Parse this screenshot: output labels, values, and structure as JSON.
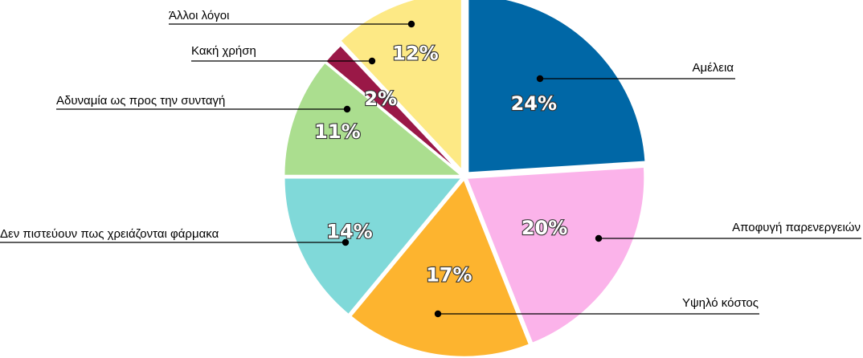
{
  "chart_data": {
    "type": "pie",
    "slices": [
      {
        "label": "Αμέλεια",
        "value": 24,
        "value_label": "24%",
        "color": "#0067a6"
      },
      {
        "label": "Αποφυγή παρενεργειών",
        "value": 20,
        "value_label": "20%",
        "color": "#fbb3ea"
      },
      {
        "label": "Υψηλό κόστος",
        "value": 17,
        "value_label": "17%",
        "color": "#fdb42f"
      },
      {
        "label": "Δεν πιστεύουν πως χρειάζονται φάρμακα",
        "value": 14,
        "value_label": "14%",
        "color": "#80d9d9"
      },
      {
        "label": "Αδυναμία ως προς την συνταγή",
        "value": 11,
        "value_label": "11%",
        "color": "#abde8f"
      },
      {
        "label": "Κακή χρήση",
        "value": 2,
        "value_label": "2%",
        "color": "#9a1847"
      },
      {
        "label": "Άλλοι λόγοι",
        "value": 12,
        "value_label": "12%",
        "color": "#fde985"
      }
    ]
  }
}
